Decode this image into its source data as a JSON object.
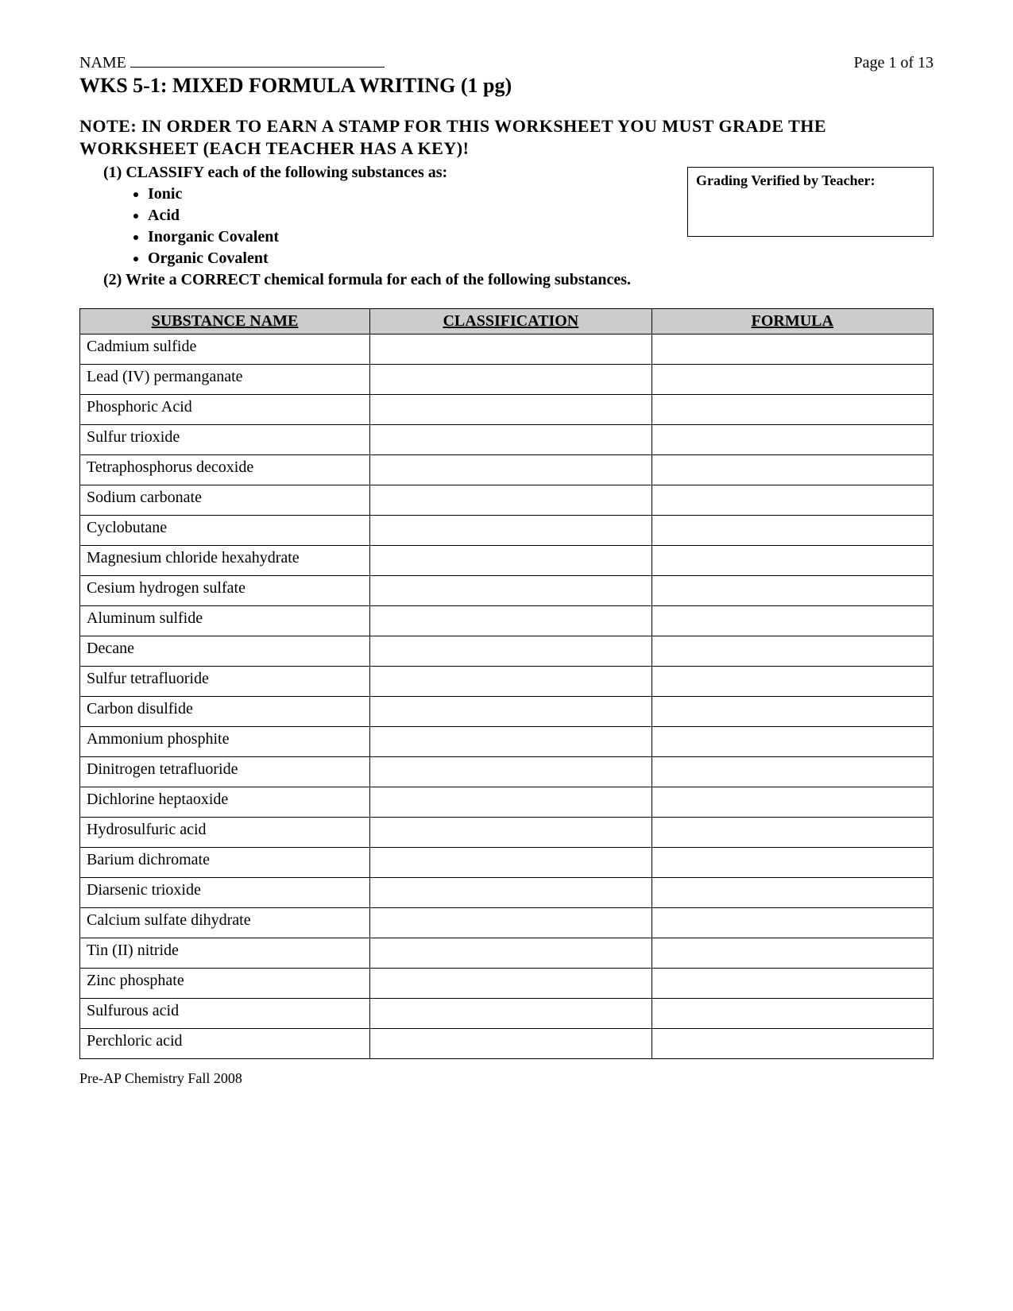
{
  "header": {
    "name_label": "NAME",
    "page_label": "Page 1 of 13"
  },
  "title": "WKS 5-1:  MIXED FORMULA WRITING (1 pg)",
  "note": "NOTE:  IN ORDER TO EARN A STAMP FOR THIS WORKSHEET YOU MUST GRADE THE WORKSHEET  (EACH TEACHER HAS A KEY)!",
  "instructions": {
    "line1": "(1)  CLASSIFY each of the following substances as:",
    "bullets": [
      "Ionic",
      "Acid",
      "Inorganic Covalent",
      "Organic Covalent"
    ],
    "line2": "(2)  Write a CORRECT chemical formula for each of the following substances."
  },
  "grading_box_label": "Grading Verified by Teacher:",
  "table": {
    "columns": [
      "SUBSTANCE NAME",
      "CLASSIFICATION",
      "FORMULA"
    ],
    "rows": [
      [
        "Cadmium sulfide",
        "",
        ""
      ],
      [
        "Lead (IV) permanganate",
        "",
        ""
      ],
      [
        "Phosphoric Acid",
        "",
        ""
      ],
      [
        "Sulfur trioxide",
        "",
        ""
      ],
      [
        "Tetraphosphorus decoxide",
        "",
        ""
      ],
      [
        "Sodium carbonate",
        "",
        ""
      ],
      [
        "Cyclobutane",
        "",
        ""
      ],
      [
        "Magnesium chloride hexahydrate",
        "",
        ""
      ],
      [
        "Cesium hydrogen sulfate",
        "",
        ""
      ],
      [
        "Aluminum sulfide",
        "",
        ""
      ],
      [
        "Decane",
        "",
        ""
      ],
      [
        "Sulfur tetrafluoride",
        "",
        ""
      ],
      [
        "Carbon disulfide",
        "",
        ""
      ],
      [
        "Ammonium phosphite",
        "",
        ""
      ],
      [
        "Dinitrogen tetrafluoride",
        "",
        ""
      ],
      [
        "Dichlorine heptaoxide",
        "",
        ""
      ],
      [
        "Hydrosulfuric acid",
        "",
        ""
      ],
      [
        "Barium dichromate",
        "",
        ""
      ],
      [
        "Diarsenic trioxide",
        "",
        ""
      ],
      [
        "Calcium sulfate dihydrate",
        "",
        ""
      ],
      [
        "Tin (II) nitride",
        "",
        ""
      ],
      [
        "Zinc phosphate",
        "",
        ""
      ],
      [
        "Sulfurous acid",
        "",
        ""
      ],
      [
        "Perchloric acid",
        "",
        ""
      ]
    ],
    "header_bg": "#cccccc",
    "border_color": "#000000"
  },
  "footer": "Pre-AP Chemistry Fall 2008"
}
